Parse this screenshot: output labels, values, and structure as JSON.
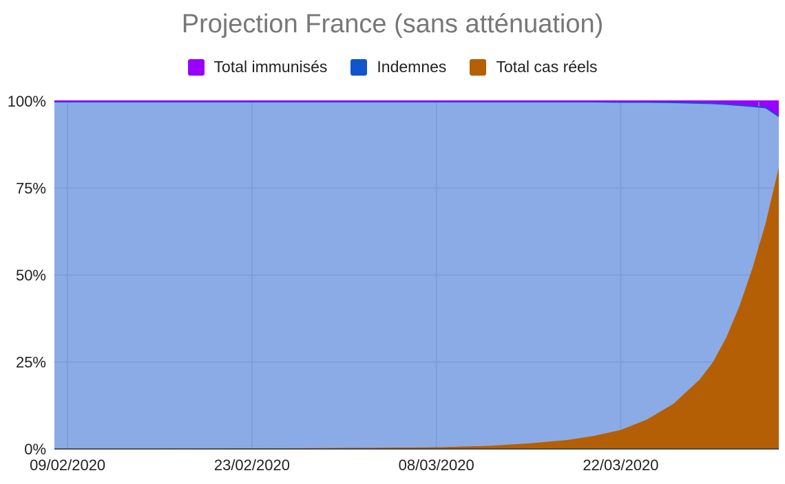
{
  "chart_data": {
    "type": "area",
    "title": "Projection France (sans atténuation)",
    "stacked_percent": true,
    "x_tick_labels": [
      "09/02/2020",
      "23/02/2020",
      "08/03/2020",
      "22/03/2020"
    ],
    "y_tick_labels": [
      "100%",
      "75%",
      "50%",
      "25%",
      "0%"
    ],
    "y_ticks": [
      100,
      75,
      50,
      25,
      0
    ],
    "ylim": [
      0,
      100
    ],
    "x_range": [
      "08/02/2020",
      "03/04/2020"
    ],
    "legend_position": "top",
    "grid": true,
    "x": [
      "08/02/2020",
      "10/02/2020",
      "15/02/2020",
      "23/02/2020",
      "01/03/2020",
      "08/03/2020",
      "12/03/2020",
      "15/03/2020",
      "18/03/2020",
      "20/03/2020",
      "22/03/2020",
      "24/03/2020",
      "26/03/2020",
      "28/03/2020",
      "29/03/2020",
      "30/03/2020",
      "31/03/2020",
      "01/04/2020",
      "02/04/2020",
      "03/04/2020"
    ],
    "series": [
      {
        "name": "Total cas réels",
        "color": "#b45f06",
        "values": [
          0.1,
          0.1,
          0.1,
          0.2,
          0.3,
          0.5,
          0.9,
          1.6,
          2.6,
          3.8,
          5.5,
          8.5,
          13,
          20,
          25,
          32,
          41,
          52,
          65,
          81
        ]
      },
      {
        "name": "Indemnes",
        "color": "#1155cc",
        "values": [
          99.7,
          99.7,
          99.7,
          99.6,
          99.5,
          99.3,
          98.9,
          98.2,
          97.2,
          96.0,
          94.2,
          91.2,
          86.6,
          79.4,
          74.3,
          67.1,
          57.8,
          46.5,
          33.1,
          14.6
        ]
      },
      {
        "name": "Total immunisés",
        "color": "#9900ff",
        "values": [
          0.2,
          0.2,
          0.2,
          0.2,
          0.2,
          0.2,
          0.2,
          0.2,
          0.2,
          0.2,
          0.3,
          0.3,
          0.4,
          0.6,
          0.7,
          0.9,
          1.2,
          1.5,
          1.9,
          4.4
        ]
      }
    ],
    "indemnes_fill": "#8aabe6",
    "gridline_color": "#7b9bd6"
  }
}
